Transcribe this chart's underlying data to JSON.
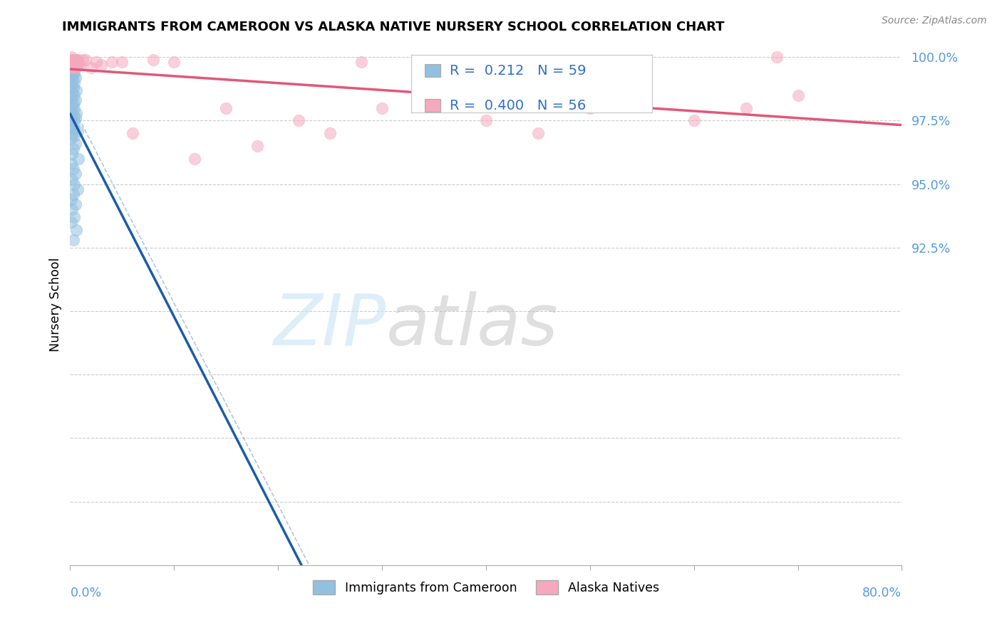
{
  "title": "IMMIGRANTS FROM CAMEROON VS ALASKA NATIVE NURSERY SCHOOL CORRELATION CHART",
  "source": "Source: ZipAtlas.com",
  "ylabel": "Nursery School",
  "legend_blue_label": "Immigrants from Cameroon",
  "legend_pink_label": "Alaska Natives",
  "R_blue": "0.212",
  "N_blue": "59",
  "R_pink": "0.400",
  "N_pink": "56",
  "blue_color": "#92C0E0",
  "pink_color": "#F5A8BE",
  "blue_line_color": "#1A5CA8",
  "pink_line_color": "#E05878",
  "blue_text_color": "#3070C8",
  "xlim": [
    0.0,
    0.8
  ],
  "ylim": [
    0.8,
    1.005
  ],
  "ytick_vals": [
    0.8,
    0.825,
    0.85,
    0.875,
    0.9,
    0.925,
    0.95,
    0.975,
    1.0
  ],
  "ytick_labels": [
    "",
    "",
    "",
    "",
    "",
    "92.5%",
    "95.0%",
    "97.5%",
    "100.0%"
  ],
  "blue_x": [
    0.002,
    0.003,
    0.004,
    0.005,
    0.001,
    0.003,
    0.005,
    0.007,
    0.002,
    0.004,
    0.001,
    0.003,
    0.002,
    0.004,
    0.001,
    0.003,
    0.005,
    0.002,
    0.004,
    0.001,
    0.003,
    0.006,
    0.002,
    0.004,
    0.001,
    0.005,
    0.003,
    0.002,
    0.004,
    0.001,
    0.006,
    0.003,
    0.005,
    0.002,
    0.004,
    0.001,
    0.003,
    0.007,
    0.002,
    0.004,
    0.001,
    0.005,
    0.003,
    0.002,
    0.008,
    0.001,
    0.003,
    0.005,
    0.002,
    0.004,
    0.007,
    0.003,
    0.001,
    0.005,
    0.002,
    0.004,
    0.001,
    0.006,
    0.003
  ],
  "blue_y": [
    0.999,
    0.999,
    0.999,
    0.999,
    0.998,
    0.998,
    0.998,
    0.998,
    0.997,
    0.997,
    0.996,
    0.996,
    0.995,
    0.994,
    0.993,
    0.993,
    0.992,
    0.991,
    0.99,
    0.989,
    0.988,
    0.987,
    0.986,
    0.985,
    0.984,
    0.983,
    0.982,
    0.981,
    0.98,
    0.979,
    0.978,
    0.977,
    0.976,
    0.975,
    0.974,
    0.973,
    0.972,
    0.971,
    0.97,
    0.969,
    0.968,
    0.966,
    0.964,
    0.962,
    0.96,
    0.958,
    0.956,
    0.954,
    0.952,
    0.95,
    0.948,
    0.946,
    0.944,
    0.942,
    0.94,
    0.937,
    0.935,
    0.932,
    0.928
  ],
  "pink_x": [
    0.001,
    0.003,
    0.005,
    0.002,
    0.004,
    0.006,
    0.003,
    0.007,
    0.002,
    0.004,
    0.001,
    0.003,
    0.005,
    0.002,
    0.006,
    0.004,
    0.003,
    0.008,
    0.002,
    0.005,
    0.001,
    0.004,
    0.007,
    0.003,
    0.002,
    0.005,
    0.001,
    0.009,
    0.003,
    0.006,
    0.012,
    0.015,
    0.02,
    0.025,
    0.03,
    0.04,
    0.05,
    0.06,
    0.08,
    0.1,
    0.12,
    0.15,
    0.18,
    0.22,
    0.25,
    0.28,
    0.3,
    0.35,
    0.4,
    0.45,
    0.5,
    0.55,
    0.6,
    0.65,
    0.68,
    0.7
  ],
  "pink_y": [
    1.0,
    0.999,
    0.999,
    0.999,
    0.998,
    0.999,
    0.998,
    0.999,
    0.999,
    0.998,
    0.998,
    0.998,
    0.998,
    0.997,
    0.997,
    0.997,
    0.997,
    0.997,
    0.997,
    0.997,
    0.996,
    0.996,
    0.998,
    0.996,
    0.997,
    0.996,
    0.996,
    0.997,
    0.996,
    0.997,
    0.999,
    0.999,
    0.996,
    0.998,
    0.997,
    0.998,
    0.998,
    0.97,
    0.999,
    0.998,
    0.96,
    0.98,
    0.965,
    0.975,
    0.97,
    0.998,
    0.98,
    0.985,
    0.975,
    0.97,
    0.98,
    0.99,
    0.975,
    0.98,
    1.0,
    0.985
  ]
}
